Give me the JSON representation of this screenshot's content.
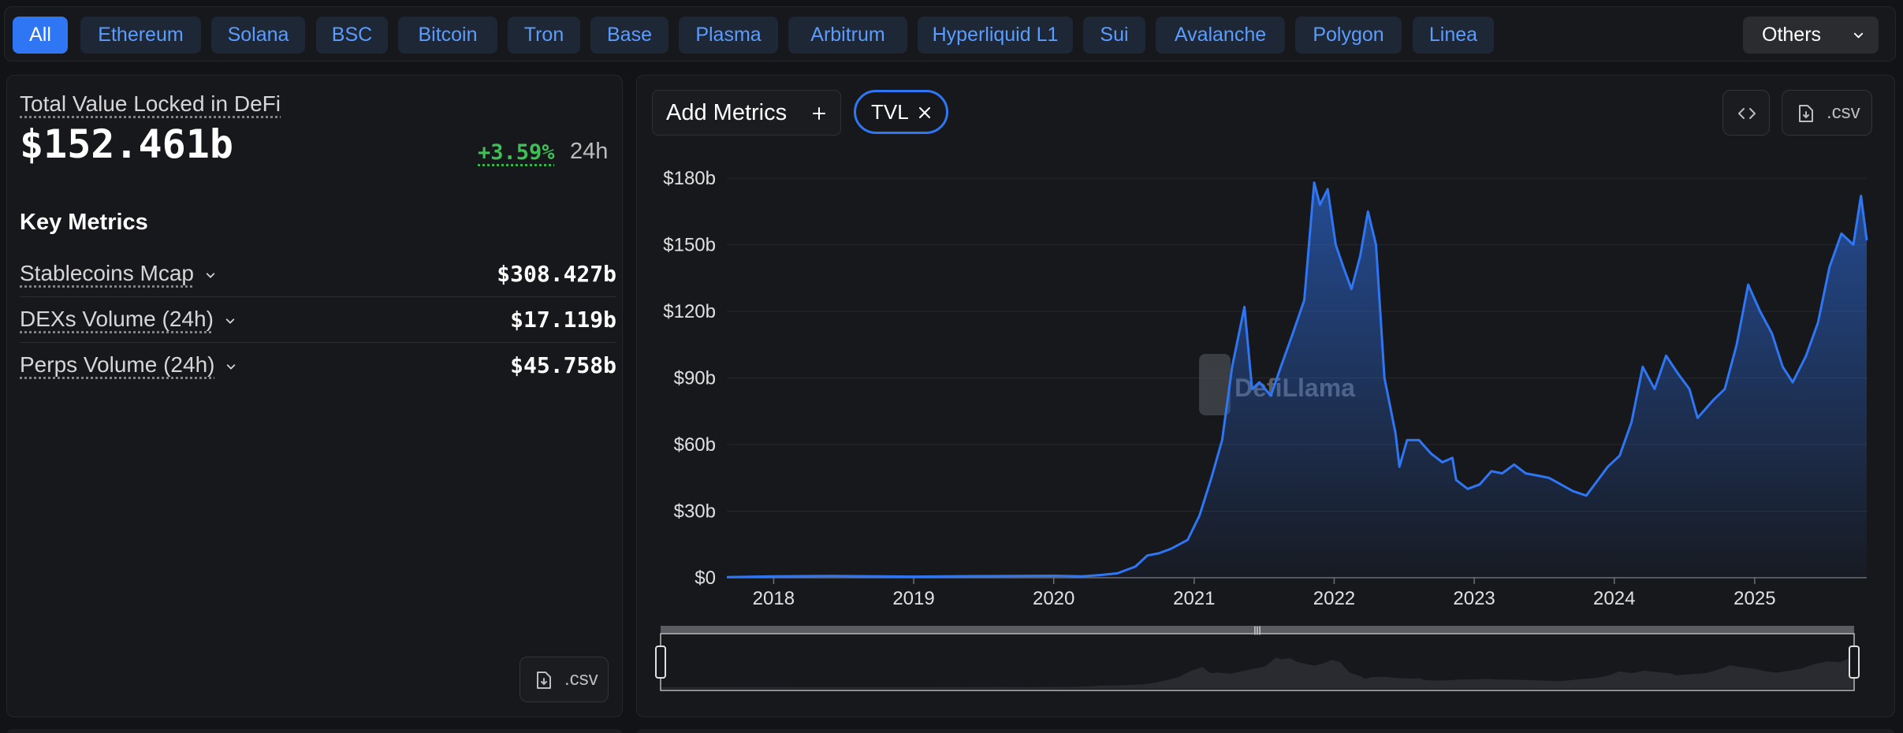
{
  "chains": {
    "items": [
      {
        "label": "All",
        "active": true
      },
      {
        "label": "Ethereum"
      },
      {
        "label": "Solana"
      },
      {
        "label": "BSC"
      },
      {
        "label": "Bitcoin"
      },
      {
        "label": "Tron"
      },
      {
        "label": "Base"
      },
      {
        "label": "Plasma"
      },
      {
        "label": "Arbitrum"
      },
      {
        "label": "Hyperliquid L1"
      },
      {
        "label": "Sui"
      },
      {
        "label": "Avalanche"
      },
      {
        "label": "Polygon"
      },
      {
        "label": "Linea"
      }
    ],
    "others_label": "Others"
  },
  "overview": {
    "tvl_label": "Total Value Locked in DeFi",
    "tvl_value": "$152.461b",
    "change": "+3.59%",
    "period": "24h",
    "key_metrics_title": "Key Metrics",
    "metrics": [
      {
        "label": "Stablecoins Mcap",
        "value": "$308.427b"
      },
      {
        "label": "DEXs Volume (24h)",
        "value": "$17.119b"
      },
      {
        "label": "Perps Volume (24h)",
        "value": "$45.758b"
      }
    ],
    "csv_label": ".csv"
  },
  "chart_panel": {
    "add_metrics_label": "Add Metrics",
    "selected_metric": "TVL",
    "csv_label": ".csv",
    "watermark": "DefiLlama"
  },
  "colors": {
    "accent": "#2f76f4",
    "line": "#2f76f4",
    "positive": "#3fbf55"
  },
  "icons": [
    "chevron-down-icon",
    "plus-icon",
    "close-icon",
    "code-icon",
    "file-download-icon",
    "llama-logo-icon"
  ],
  "chart_data": {
    "type": "area",
    "title": "",
    "xlabel": "",
    "ylabel": "",
    "series": [
      {
        "name": "TVL",
        "points": [
          [
            "2017-09-01",
            0.3
          ],
          [
            "2018-01-01",
            0.6
          ],
          [
            "2018-06-01",
            0.8
          ],
          [
            "2019-01-01",
            0.5
          ],
          [
            "2019-06-01",
            0.7
          ],
          [
            "2020-01-01",
            0.9
          ],
          [
            "2020-03-15",
            0.6
          ],
          [
            "2020-05-01",
            1.2
          ],
          [
            "2020-06-15",
            2
          ],
          [
            "2020-08-01",
            5
          ],
          [
            "2020-09-01",
            10
          ],
          [
            "2020-10-01",
            11
          ],
          [
            "2020-11-01",
            13
          ],
          [
            "2020-12-15",
            17
          ],
          [
            "2021-01-15",
            28
          ],
          [
            "2021-02-15",
            45
          ],
          [
            "2021-03-15",
            62
          ],
          [
            "2021-04-10",
            95
          ],
          [
            "2021-05-12",
            122
          ],
          [
            "2021-06-01",
            85
          ],
          [
            "2021-06-20",
            88
          ],
          [
            "2021-07-20",
            82
          ],
          [
            "2021-08-15",
            95
          ],
          [
            "2021-09-15",
            110
          ],
          [
            "2021-10-15",
            125
          ],
          [
            "2021-11-10",
            178
          ],
          [
            "2021-11-25",
            168
          ],
          [
            "2021-12-15",
            175
          ],
          [
            "2022-01-05",
            150
          ],
          [
            "2022-01-25",
            140
          ],
          [
            "2022-02-15",
            130
          ],
          [
            "2022-03-10",
            145
          ],
          [
            "2022-03-30",
            165
          ],
          [
            "2022-04-20",
            150
          ],
          [
            "2022-05-12",
            90
          ],
          [
            "2022-06-10",
            65
          ],
          [
            "2022-06-20",
            50
          ],
          [
            "2022-07-10",
            62
          ],
          [
            "2022-08-10",
            62
          ],
          [
            "2022-09-10",
            56
          ],
          [
            "2022-10-10",
            52
          ],
          [
            "2022-11-05",
            54
          ],
          [
            "2022-11-15",
            44
          ],
          [
            "2022-12-15",
            40
          ],
          [
            "2023-01-15",
            42
          ],
          [
            "2023-02-15",
            48
          ],
          [
            "2023-03-15",
            47
          ],
          [
            "2023-04-15",
            51
          ],
          [
            "2023-05-15",
            47
          ],
          [
            "2023-06-15",
            46
          ],
          [
            "2023-07-15",
            45
          ],
          [
            "2023-08-15",
            42
          ],
          [
            "2023-09-15",
            39
          ],
          [
            "2023-10-20",
            37
          ],
          [
            "2023-11-15",
            43
          ],
          [
            "2023-12-15",
            50
          ],
          [
            "2024-01-15",
            55
          ],
          [
            "2024-02-15",
            70
          ],
          [
            "2024-03-15",
            95
          ],
          [
            "2024-04-15",
            85
          ],
          [
            "2024-05-15",
            100
          ],
          [
            "2024-06-15",
            92
          ],
          [
            "2024-07-15",
            85
          ],
          [
            "2024-08-05",
            72
          ],
          [
            "2024-09-15",
            80
          ],
          [
            "2024-10-15",
            85
          ],
          [
            "2024-11-15",
            105
          ],
          [
            "2024-12-15",
            132
          ],
          [
            "2025-01-15",
            120
          ],
          [
            "2025-02-15",
            110
          ],
          [
            "2025-03-15",
            95
          ],
          [
            "2025-04-10",
            88
          ],
          [
            "2025-05-15",
            100
          ],
          [
            "2025-06-15",
            115
          ],
          [
            "2025-07-15",
            140
          ],
          [
            "2025-08-15",
            155
          ],
          [
            "2025-09-15",
            150
          ],
          [
            "2025-10-05",
            172
          ],
          [
            "2025-10-20",
            152
          ]
        ]
      }
    ],
    "x_ticks": [
      "2018",
      "2019",
      "2020",
      "2021",
      "2022",
      "2023",
      "2024",
      "2025"
    ],
    "y_ticks": [
      "$0",
      "$30b",
      "$60b",
      "$90b",
      "$120b",
      "$150b",
      "$180b"
    ],
    "xlim": [
      "2017-09-01",
      "2025-10-20"
    ],
    "ylim": [
      0,
      180
    ],
    "y_unit": "billions USD",
    "grid": true,
    "legend": "none"
  }
}
